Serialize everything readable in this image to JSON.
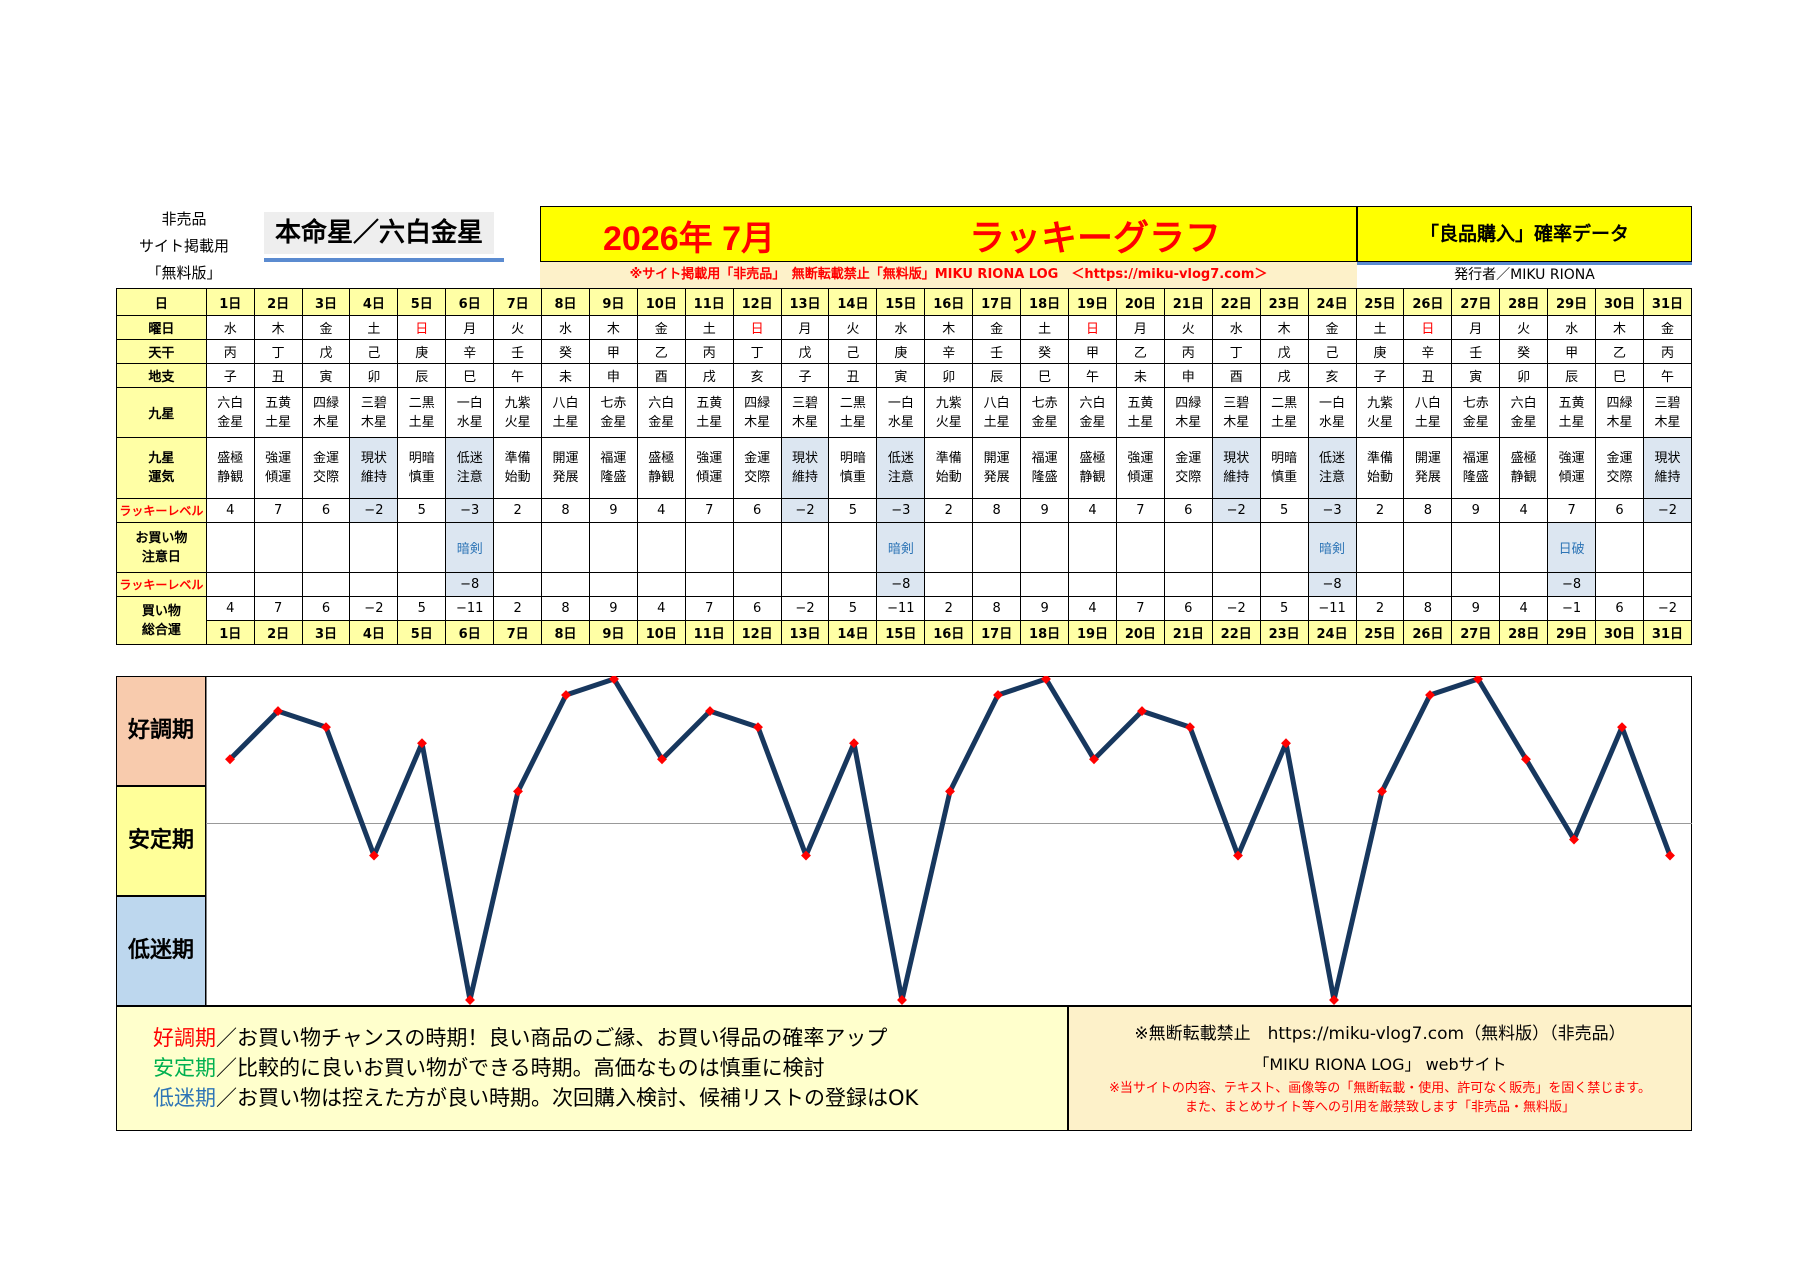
{
  "header": {
    "left_lines": [
      "非売品",
      "サイト掲載用",
      "「無料版」"
    ],
    "honmei": "本命星／六白金星",
    "year_month": "2026年 7月",
    "graph_title": "ラッキーグラフ",
    "right_title": "「良品購入」確率データ",
    "notice": "※サイト掲載用「非売品」　無断転載禁止「無料版」MIKU RIONA LOG　＜https://miku-vlog7.com＞",
    "issuer": "発行者／MIKU RIONA"
  },
  "row_labels": {
    "day": "日",
    "weekday": "曜日",
    "tenkan": "天干",
    "chishi": "地支",
    "kyusei": "九星",
    "kyusei_unki": [
      "九星",
      "運気"
    ],
    "lucky_level": "ラッキーレベル",
    "shopping_caution": [
      "お買い物",
      "注意日"
    ],
    "lucky_level2": "ラッキーレベル",
    "shopping_total": [
      "買い物",
      "総合運"
    ]
  },
  "days": [
    "1日",
    "2日",
    "3日",
    "4日",
    "5日",
    "6日",
    "7日",
    "8日",
    "9日",
    "10日",
    "11日",
    "12日",
    "13日",
    "14日",
    "15日",
    "16日",
    "17日",
    "18日",
    "19日",
    "20日",
    "21日",
    "22日",
    "23日",
    "24日",
    "25日",
    "26日",
    "27日",
    "28日",
    "29日",
    "30日",
    "31日"
  ],
  "weekdays": [
    "水",
    "木",
    "金",
    "土",
    "日",
    "月",
    "火",
    "水",
    "木",
    "金",
    "土",
    "日",
    "月",
    "火",
    "水",
    "木",
    "金",
    "土",
    "日",
    "月",
    "火",
    "水",
    "木",
    "金",
    "土",
    "日",
    "月",
    "火",
    "水",
    "木",
    "金"
  ],
  "tenkan": [
    "丙",
    "丁",
    "戊",
    "己",
    "庚",
    "辛",
    "壬",
    "癸",
    "甲",
    "乙",
    "丙",
    "丁",
    "戊",
    "己",
    "庚",
    "辛",
    "壬",
    "癸",
    "甲",
    "乙",
    "丙",
    "丁",
    "戊",
    "己",
    "庚",
    "辛",
    "壬",
    "癸",
    "甲",
    "乙",
    "丙"
  ],
  "chishi": [
    "子",
    "丑",
    "寅",
    "卯",
    "辰",
    "巳",
    "午",
    "未",
    "申",
    "酉",
    "戌",
    "亥",
    "子",
    "丑",
    "寅",
    "卯",
    "辰",
    "巳",
    "午",
    "未",
    "申",
    "酉",
    "戌",
    "亥",
    "子",
    "丑",
    "寅",
    "卯",
    "辰",
    "巳",
    "午"
  ],
  "kyusei": [
    [
      "六白",
      "金星"
    ],
    [
      "五黄",
      "土星"
    ],
    [
      "四緑",
      "木星"
    ],
    [
      "三碧",
      "木星"
    ],
    [
      "二黒",
      "土星"
    ],
    [
      "一白",
      "水星"
    ],
    [
      "九紫",
      "火星"
    ],
    [
      "八白",
      "土星"
    ],
    [
      "七赤",
      "金星"
    ],
    [
      "六白",
      "金星"
    ],
    [
      "五黄",
      "土星"
    ],
    [
      "四緑",
      "木星"
    ],
    [
      "三碧",
      "木星"
    ],
    [
      "二黒",
      "土星"
    ],
    [
      "一白",
      "水星"
    ],
    [
      "九紫",
      "火星"
    ],
    [
      "八白",
      "土星"
    ],
    [
      "七赤",
      "金星"
    ],
    [
      "六白",
      "金星"
    ],
    [
      "五黄",
      "土星"
    ],
    [
      "四緑",
      "木星"
    ],
    [
      "三碧",
      "木星"
    ],
    [
      "二黒",
      "土星"
    ],
    [
      "一白",
      "水星"
    ],
    [
      "九紫",
      "火星"
    ],
    [
      "八白",
      "土星"
    ],
    [
      "七赤",
      "金星"
    ],
    [
      "六白",
      "金星"
    ],
    [
      "五黄",
      "土星"
    ],
    [
      "四緑",
      "木星"
    ],
    [
      "三碧",
      "木星"
    ]
  ],
  "unki": [
    [
      "盛極",
      "静観"
    ],
    [
      "強運",
      "傾運"
    ],
    [
      "金運",
      "交際"
    ],
    [
      "現状",
      "維持"
    ],
    [
      "明暗",
      "慎重"
    ],
    [
      "低迷",
      "注意"
    ],
    [
      "準備",
      "始動"
    ],
    [
      "開運",
      "発展"
    ],
    [
      "福運",
      "隆盛"
    ],
    [
      "盛極",
      "静観"
    ],
    [
      "強運",
      "傾運"
    ],
    [
      "金運",
      "交際"
    ],
    [
      "現状",
      "維持"
    ],
    [
      "明暗",
      "慎重"
    ],
    [
      "低迷",
      "注意"
    ],
    [
      "準備",
      "始動"
    ],
    [
      "開運",
      "発展"
    ],
    [
      "福運",
      "隆盛"
    ],
    [
      "盛極",
      "静観"
    ],
    [
      "強運",
      "傾運"
    ],
    [
      "金運",
      "交際"
    ],
    [
      "現状",
      "維持"
    ],
    [
      "明暗",
      "慎重"
    ],
    [
      "低迷",
      "注意"
    ],
    [
      "準備",
      "始動"
    ],
    [
      "開運",
      "発展"
    ],
    [
      "福運",
      "隆盛"
    ],
    [
      "盛極",
      "静観"
    ],
    [
      "強運",
      "傾運"
    ],
    [
      "金運",
      "交際"
    ],
    [
      "現状",
      "維持"
    ]
  ],
  "lucky_levels": [
    "4",
    "7",
    "6",
    "−2",
    "5",
    "−3",
    "2",
    "8",
    "9",
    "4",
    "7",
    "6",
    "−2",
    "5",
    "−3",
    "2",
    "8",
    "9",
    "4",
    "7",
    "6",
    "−2",
    "5",
    "−3",
    "2",
    "8",
    "9",
    "4",
    "7",
    "6",
    "−2"
  ],
  "caution": [
    "",
    "",
    "",
    "",
    "",
    "暗剣",
    "",
    "",
    "",
    "",
    "",
    "",
    "",
    "",
    "暗剣",
    "",
    "",
    "",
    "",
    "",
    "",
    "",
    "",
    "暗剣",
    "",
    "",
    "",
    "",
    "日破",
    "",
    ""
  ],
  "lucky_levels2": [
    "",
    "",
    "",
    "",
    "",
    "−8",
    "",
    "",
    "",
    "",
    "",
    "",
    "",
    "",
    "−8",
    "",
    "",
    "",
    "",
    "",
    "",
    "",
    "",
    "−8",
    "",
    "",
    "",
    "",
    "−8",
    "",
    ""
  ],
  "totals": [
    "4",
    "7",
    "6",
    "−2",
    "5",
    "−11",
    "2",
    "8",
    "9",
    "4",
    "7",
    "6",
    "−2",
    "5",
    "−11",
    "2",
    "8",
    "9",
    "4",
    "7",
    "6",
    "−2",
    "5",
    "−11",
    "2",
    "8",
    "9",
    "4",
    "−1",
    "6",
    "−2"
  ],
  "chart_data": {
    "type": "line",
    "x": [
      "1日",
      "2日",
      "3日",
      "4日",
      "5日",
      "6日",
      "7日",
      "8日",
      "9日",
      "10日",
      "11日",
      "12日",
      "13日",
      "14日",
      "15日",
      "16日",
      "17日",
      "18日",
      "19日",
      "20日",
      "21日",
      "22日",
      "23日",
      "24日",
      "25日",
      "26日",
      "27日",
      "28日",
      "29日",
      "30日",
      "31日"
    ],
    "values": [
      4,
      7,
      6,
      -2,
      5,
      -11,
      2,
      8,
      9,
      4,
      7,
      6,
      -2,
      5,
      -11,
      2,
      8,
      9,
      4,
      7,
      6,
      -2,
      5,
      -11,
      2,
      8,
      9,
      4,
      -1,
      6,
      -2
    ],
    "zones": [
      "好調期",
      "安定期",
      "低迷期"
    ],
    "zone_colors": [
      "#f8cbad",
      "#ffff99",
      "#bdd7ee"
    ],
    "line_color": "#17375e",
    "marker_color": "#ff0000"
  },
  "footer": {
    "legend": [
      {
        "term": "好調期",
        "text": "／お買い物チャンスの時期！良い商品のご縁、お買い得品の確率アップ",
        "color": "#ff0000"
      },
      {
        "term": "安定期",
        "text": "／比較的に良いお買い物ができる時期。高価なものは慎重に検討",
        "color": "#00b050"
      },
      {
        "term": "低迷期",
        "text": "／お買い物は控えた方が良い時期。次回購入検討、候補リストの登録はOK",
        "color": "#2e75b6"
      }
    ],
    "right_l1": "※無断転載禁止　https://miku-vlog7.com（無料版）（非売品）",
    "right_l2": "「MIKU RIONA LOG」 webサイト",
    "right_l3a": "※当サイトの内容、テキスト、画像等の「無断転載・使用、許可なく販売」を固く禁じます。",
    "right_l3b": "また、まとめサイト等への引用を厳禁致します「非売品・無料版」"
  }
}
